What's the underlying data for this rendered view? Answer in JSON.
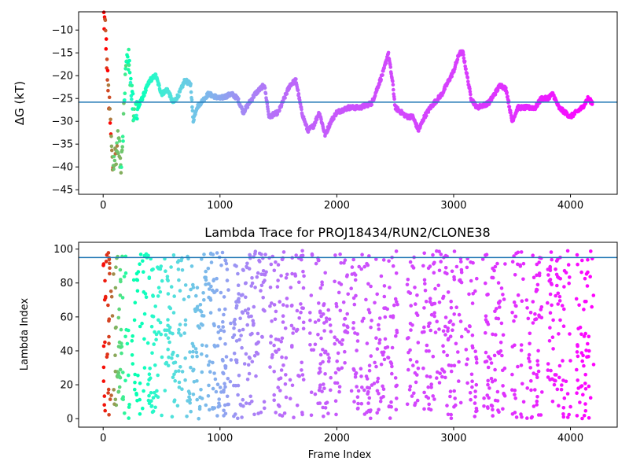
{
  "chart_data": [
    {
      "type": "scatter",
      "title": "",
      "xlabel": "",
      "ylabel": "ΔG (kT)",
      "xlim": [
        -210,
        4400
      ],
      "ylim": [
        -46,
        -6
      ],
      "xticks": [
        0,
        1000,
        2000,
        3000,
        4000
      ],
      "xtick_labels": [
        "0",
        "1000",
        "2000",
        "3000",
        "4000"
      ],
      "yticks": [
        -45,
        -40,
        -35,
        -30,
        -25,
        -20,
        -15,
        -10
      ],
      "ytick_labels": [
        "−45",
        "−40",
        "−35",
        "−30",
        "−25",
        "−20",
        "−15",
        "−10"
      ],
      "hline": -25.8,
      "hline_color": "#1f77b4",
      "colormap": "rainbow",
      "color_by": "lambda_index",
      "x_range": [
        0,
        4190
      ],
      "trace_keypoints": [
        [
          0,
          -6
        ],
        [
          20,
          -10
        ],
        [
          40,
          -22
        ],
        [
          60,
          -30
        ],
        [
          80,
          -40
        ],
        [
          100,
          -38
        ],
        [
          130,
          -34
        ],
        [
          150,
          -40
        ],
        [
          170,
          -32
        ],
        [
          190,
          -20
        ],
        [
          210,
          -15
        ],
        [
          240,
          -22
        ],
        [
          260,
          -28
        ],
        [
          300,
          -27
        ],
        [
          350,
          -24
        ],
        [
          400,
          -21
        ],
        [
          450,
          -20
        ],
        [
          500,
          -24
        ],
        [
          550,
          -23
        ],
        [
          600,
          -26
        ],
        [
          650,
          -24
        ],
        [
          700,
          -21
        ],
        [
          750,
          -22
        ],
        [
          770,
          -30
        ],
        [
          800,
          -27
        ],
        [
          900,
          -24
        ],
        [
          1000,
          -25
        ],
        [
          1100,
          -24
        ],
        [
          1150,
          -25
        ],
        [
          1200,
          -28
        ],
        [
          1300,
          -24
        ],
        [
          1380,
          -22
        ],
        [
          1420,
          -29
        ],
        [
          1500,
          -28
        ],
        [
          1550,
          -25
        ],
        [
          1600,
          -22
        ],
        [
          1650,
          -21
        ],
        [
          1700,
          -28
        ],
        [
          1750,
          -32
        ],
        [
          1800,
          -31
        ],
        [
          1850,
          -28
        ],
        [
          1900,
          -33
        ],
        [
          1950,
          -30
        ],
        [
          2000,
          -28
        ],
        [
          2100,
          -27
        ],
        [
          2200,
          -27
        ],
        [
          2300,
          -26
        ],
        [
          2400,
          -19
        ],
        [
          2440,
          -15
        ],
        [
          2480,
          -22
        ],
        [
          2500,
          -27
        ],
        [
          2550,
          -28
        ],
        [
          2600,
          -29
        ],
        [
          2650,
          -29
        ],
        [
          2700,
          -32
        ],
        [
          2750,
          -29
        ],
        [
          2800,
          -27
        ],
        [
          2900,
          -24
        ],
        [
          3000,
          -19
        ],
        [
          3050,
          -15
        ],
        [
          3080,
          -15
        ],
        [
          3150,
          -25
        ],
        [
          3200,
          -27
        ],
        [
          3300,
          -26
        ],
        [
          3400,
          -22
        ],
        [
          3450,
          -23
        ],
        [
          3500,
          -30
        ],
        [
          3550,
          -27
        ],
        [
          3600,
          -27
        ],
        [
          3650,
          -27
        ],
        [
          3700,
          -27
        ],
        [
          3750,
          -25
        ],
        [
          3800,
          -25
        ],
        [
          3850,
          -24
        ],
        [
          3900,
          -27
        ],
        [
          3950,
          -28
        ],
        [
          4000,
          -29
        ],
        [
          4050,
          -28
        ],
        [
          4100,
          -27
        ],
        [
          4150,
          -25
        ],
        [
          4190,
          -26
        ]
      ],
      "color_keypoints": [
        [
          0,
          0.99
        ],
        [
          60,
          0.9
        ],
        [
          120,
          0.72
        ],
        [
          200,
          0.55
        ],
        [
          300,
          0.5
        ],
        [
          500,
          0.38
        ],
        [
          700,
          0.3
        ],
        [
          1000,
          0.23
        ],
        [
          1200,
          0.18
        ],
        [
          1500,
          0.14
        ],
        [
          2000,
          0.11
        ],
        [
          2500,
          0.09
        ],
        [
          3000,
          0.08
        ],
        [
          3500,
          0.06
        ],
        [
          4000,
          0.02
        ],
        [
          4190,
          0.0
        ]
      ]
    },
    {
      "type": "scatter",
      "title": "Lambda Trace for PROJ18434/RUN2/CLONE38",
      "xlabel": "Frame Index",
      "ylabel": "Lambda Index",
      "xlim": [
        -210,
        4400
      ],
      "ylim": [
        -5,
        104
      ],
      "xticks": [
        0,
        1000,
        2000,
        3000,
        4000
      ],
      "xtick_labels": [
        "0",
        "1000",
        "2000",
        "3000",
        "4000"
      ],
      "yticks": [
        0,
        20,
        40,
        60,
        80,
        100
      ],
      "ytick_labels": [
        "0",
        "20",
        "40",
        "60",
        "80",
        "100"
      ],
      "hline": 95,
      "hline_color": "#1f77b4",
      "colormap": "rainbow",
      "y_range": [
        0,
        99
      ],
      "dense_intervals": [
        [
          0,
          1200
        ],
        [
          1200,
          1400
        ],
        [
          1420,
          1580
        ],
        [
          1600,
          1720
        ],
        [
          1770,
          1950
        ],
        [
          1980,
          2100
        ],
        [
          2120,
          2300
        ],
        [
          2320,
          2420
        ],
        [
          2430,
          2520
        ],
        [
          2600,
          2700
        ],
        [
          2730,
          3070
        ],
        [
          3100,
          3200
        ],
        [
          3250,
          3450
        ],
        [
          3500,
          3600
        ],
        [
          3620,
          3760
        ],
        [
          3800,
          4000
        ],
        [
          4050,
          4200
        ]
      ]
    }
  ]
}
